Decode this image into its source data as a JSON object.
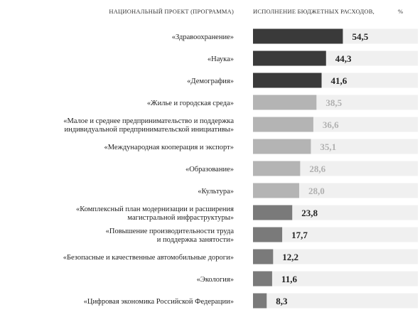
{
  "header": {
    "left": "НАЦИОНАЛЬНЫЙ ПРОЕКТ (ПРОГРАММА)",
    "right": "ИСПОЛНЕНИЕ БЮДЖЕТНЫХ РАСХОДОВ,",
    "unit": "%"
  },
  "colors": {
    "dark": "#3a3a3a",
    "light": "#b4b4b4",
    "medium": "#7a7a7a",
    "track": "#f0f0f0",
    "value_dark": "#222222",
    "value_light": "#b0b0b0"
  },
  "chart_data": {
    "type": "bar",
    "orientation": "horizontal",
    "xlim": [
      0,
      100
    ],
    "categories": [
      [
        "«Здравоохранение»"
      ],
      [
        "«Наука»"
      ],
      [
        "«Демография»"
      ],
      [
        "«Жилье и городская среда»"
      ],
      [
        "«Малое и среднее предпринимательство и поддержка",
        "индивидуальной предпринимательской инициативы»"
      ],
      [
        "«Международная кооперация и экспорт»"
      ],
      [
        "«Образование»"
      ],
      [
        "«Культура»"
      ],
      [
        "«Комплексный план модернизации и расширения",
        "магистральной инфраструктуры»"
      ],
      [
        "«Повышение производительности труда",
        "и поддержка занятости»"
      ],
      [
        "«Безопасные и качественные автомобильные дороги»"
      ],
      [
        "«Экология»"
      ],
      [
        "«Цифровая экономика Российской Федерации»"
      ]
    ],
    "values": [
      54.5,
      44.3,
      41.6,
      38.5,
      36.6,
      35.1,
      28.6,
      28.0,
      23.8,
      17.7,
      12.2,
      11.6,
      8.3
    ],
    "value_labels": [
      "54,5",
      "44,3",
      "41,6",
      "38,5",
      "36,6",
      "35,1",
      "28,6",
      "28,0",
      "23,8",
      "17,7",
      "12,2",
      "11,6",
      "8,3"
    ],
    "groups": [
      "dark",
      "dark",
      "dark",
      "light",
      "light",
      "light",
      "light",
      "light",
      "medium",
      "medium",
      "medium",
      "medium",
      "medium"
    ]
  }
}
